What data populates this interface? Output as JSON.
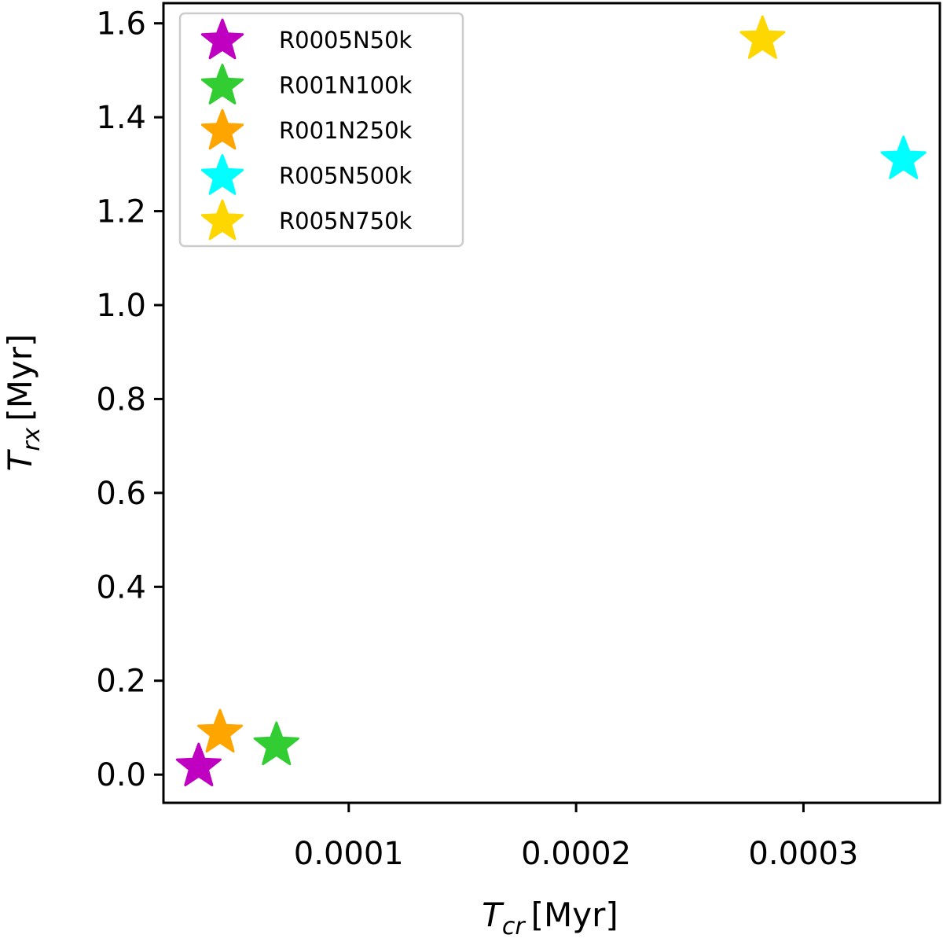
{
  "chart_data": {
    "type": "scatter",
    "title": "",
    "xlabel": "T_cr [Myr]",
    "ylabel": "T_rx [Myr]",
    "xlabel_parts": {
      "symbol": "T",
      "sub": "cr",
      "unit": "[Myr]"
    },
    "ylabel_parts": {
      "symbol": "T",
      "sub": "rx",
      "unit": "[Myr]"
    },
    "xlim": [
      1.85e-05,
      0.00036
    ],
    "ylim": [
      -0.06,
      1.643
    ],
    "xticks": [
      0.0001,
      0.0002,
      0.0003
    ],
    "xtick_labels": [
      "0.0001",
      "0.0002",
      "0.0003"
    ],
    "yticks": [
      0.0,
      0.2,
      0.4,
      0.6,
      0.8,
      1.0,
      1.2,
      1.4,
      1.6
    ],
    "ytick_labels": [
      "0.0",
      "0.2",
      "0.4",
      "0.6",
      "0.8",
      "1.0",
      "1.2",
      "1.4",
      "1.6"
    ],
    "grid": false,
    "legend_position": "upper left",
    "marker": "star",
    "series": [
      {
        "name": "R0005N50k",
        "color": "#c000c0",
        "x": [
          3.4e-05
        ],
        "y": [
          0.017
        ]
      },
      {
        "name": "R001N100k",
        "color": "#32cd32",
        "x": [
          6.82e-05
        ],
        "y": [
          0.062
        ]
      },
      {
        "name": "R001N250k",
        "color": "#ffa500",
        "x": [
          4.34e-05
        ],
        "y": [
          0.089
        ]
      },
      {
        "name": "R005N500k",
        "color": "#00ffff",
        "x": [
          0.000344
        ],
        "y": [
          1.31
        ]
      },
      {
        "name": "R005N750k",
        "color": "#ffd700",
        "x": [
          0.000282
        ],
        "y": [
          1.566
        ]
      }
    ]
  }
}
